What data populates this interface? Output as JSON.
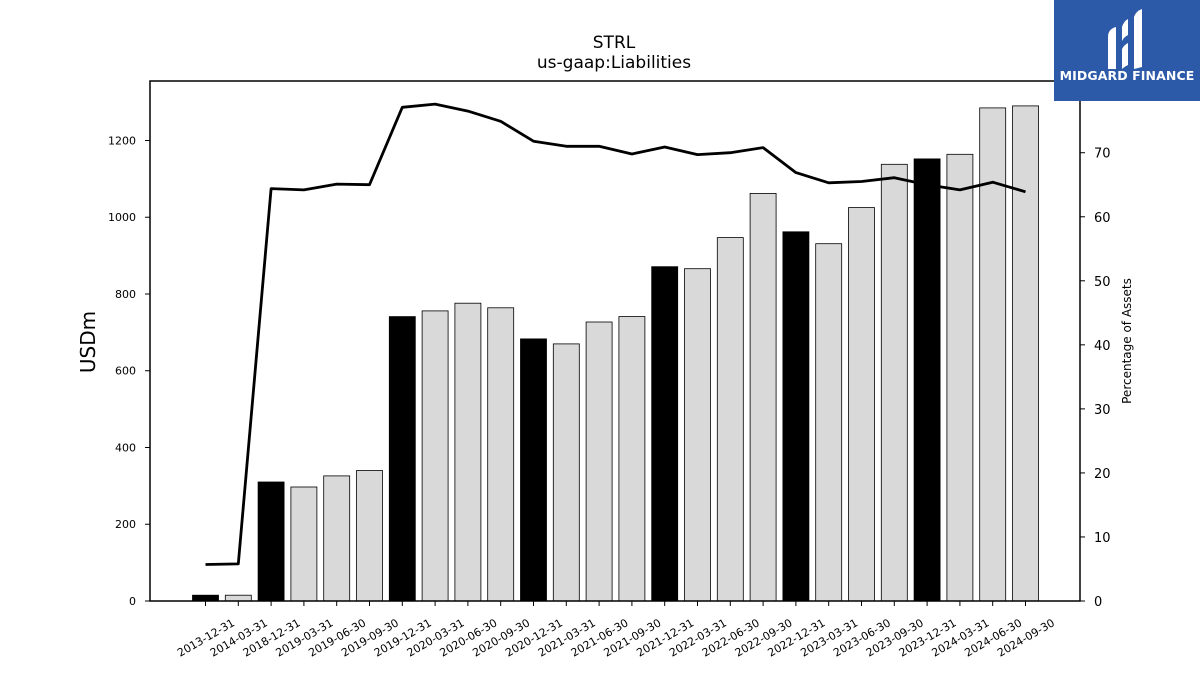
{
  "logo": {
    "brand": "MIDGARD FINANCE"
  },
  "chart_data": {
    "type": "bar",
    "title": "STRL",
    "subtitle": "us-gaap:Liabilities",
    "ylabel": "USDm",
    "y2label": "Percentage of Assets",
    "ylim": [
      0,
      1355
    ],
    "y2lim": [
      0,
      81.2
    ],
    "yticks": [
      0,
      200,
      400,
      600,
      800,
      1000,
      1200
    ],
    "y2ticks": [
      0,
      10,
      20,
      30,
      40,
      50,
      60,
      70
    ],
    "categories": [
      "2013-12-31",
      "2014-03-31",
      "2018-12-31",
      "2019-03-31",
      "2019-06-30",
      "2019-09-30",
      "2019-12-31",
      "2020-03-31",
      "2020-06-30",
      "2020-09-30",
      "2020-12-31",
      "2021-03-31",
      "2021-06-30",
      "2021-09-30",
      "2021-12-31",
      "2022-03-31",
      "2022-06-30",
      "2022-09-30",
      "2022-12-31",
      "2023-03-31",
      "2023-06-30",
      "2023-09-30",
      "2023-12-31",
      "2024-03-31",
      "2024-06-30",
      "2024-09-30"
    ],
    "series": [
      {
        "type": "bar",
        "values": [
          15,
          15,
          310,
          297,
          326,
          340,
          741,
          756,
          776,
          764,
          683,
          670,
          727,
          741,
          871,
          866,
          947,
          1062,
          962,
          931,
          1025,
          1138,
          1152,
          1164,
          1285,
          1290
        ],
        "year_end_color": "#000000",
        "other_color": "#d9d9d9"
      },
      {
        "type": "line",
        "axis": "right",
        "values": [
          5.7,
          5.8,
          64.4,
          64.2,
          65.1,
          65.0,
          77.1,
          77.6,
          76.5,
          74.9,
          71.8,
          71.0,
          71.0,
          69.8,
          70.9,
          69.7,
          70.0,
          70.8,
          66.9,
          65.3,
          65.5,
          66.1,
          65.0,
          64.2,
          65.4,
          63.9
        ],
        "color": "#000000"
      }
    ],
    "grid": false,
    "legend": "none"
  }
}
